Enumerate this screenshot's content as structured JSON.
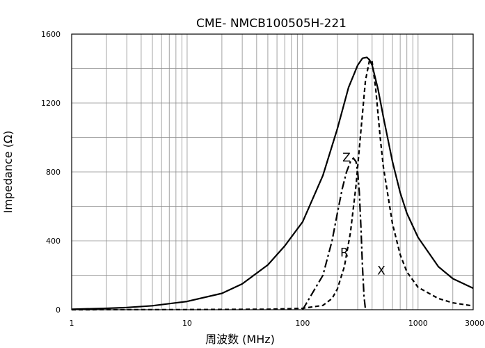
{
  "chart_data": {
    "type": "line",
    "title": "CME- NMCB100505H-221",
    "xlabel": "周波数 (MHz)",
    "ylabel": "Impedance (Ω)",
    "xscale": "log",
    "xlim": [
      1,
      3000
    ],
    "ylim": [
      0,
      1600
    ],
    "grid": true,
    "legend": "none",
    "x_ticks": [
      "1",
      "10",
      "100",
      "1000",
      "3000"
    ],
    "y_ticks": [
      "0",
      "400",
      "800",
      "1200",
      "1600"
    ],
    "series": [
      {
        "name": "Z",
        "style": "solid",
        "x": [
          1,
          2,
          3,
          5,
          10,
          20,
          30,
          50,
          70,
          100,
          150,
          200,
          250,
          300,
          330,
          360,
          380,
          400,
          450,
          500,
          600,
          700,
          800,
          1000,
          1500,
          2000,
          3000
        ],
        "y": [
          3,
          8,
          13,
          23,
          48,
          95,
          150,
          260,
          370,
          510,
          780,
          1050,
          1290,
          1420,
          1460,
          1465,
          1450,
          1420,
          1280,
          1120,
          860,
          680,
          560,
          420,
          250,
          180,
          125
        ]
      },
      {
        "name": "R",
        "style": "dashed",
        "x": [
          1,
          10,
          50,
          100,
          150,
          180,
          200,
          230,
          260,
          290,
          320,
          350,
          380,
          400,
          430,
          470,
          500,
          600,
          700,
          800,
          1000,
          1500,
          2000,
          3000
        ],
        "y": [
          0,
          1,
          3,
          8,
          25,
          65,
          120,
          250,
          450,
          720,
          1040,
          1330,
          1450,
          1440,
          1280,
          1000,
          830,
          500,
          320,
          220,
          130,
          65,
          40,
          22
        ]
      },
      {
        "name": "X",
        "style": "dash-dot",
        "x": [
          100,
          150,
          180,
          200,
          220,
          240,
          260,
          275,
          290,
          300,
          310,
          320,
          330,
          340,
          350
        ],
        "y": [
          0,
          200,
          400,
          560,
          700,
          800,
          860,
          880,
          860,
          800,
          680,
          480,
          250,
          80,
          0
        ]
      }
    ],
    "annotations": [
      {
        "text": "Z",
        "x": 240,
        "y": 860
      },
      {
        "text": "R",
        "x": 230,
        "y": 310
      },
      {
        "text": "X",
        "x": 480,
        "y": 205
      }
    ]
  }
}
